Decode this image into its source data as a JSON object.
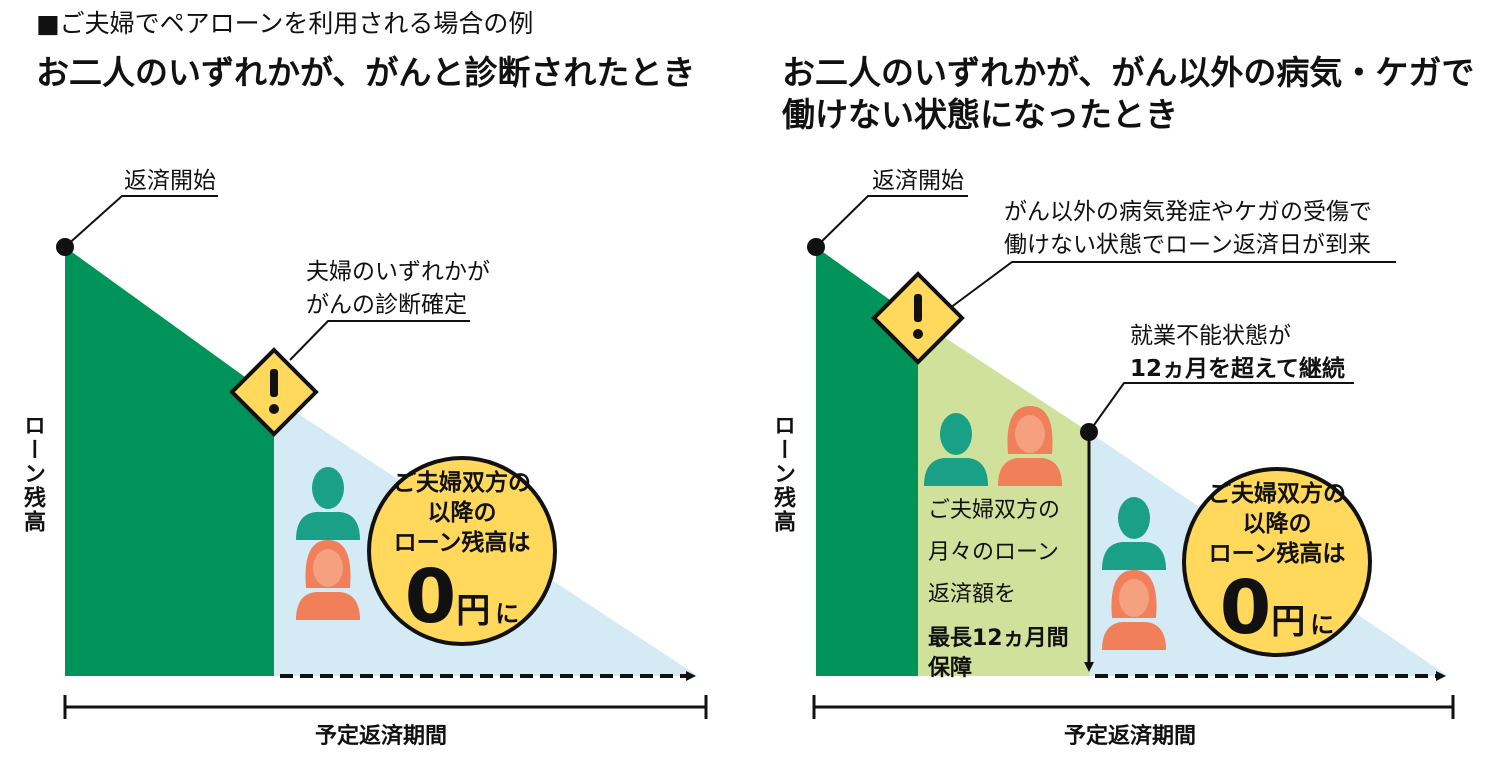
{
  "caption": "■ご夫婦でペアローンを利用される場合の例",
  "left": {
    "title": "お二人のいずれかが、がんと診断されたとき",
    "start_label": "返済開始",
    "event_line1": "夫婦のいずれかが",
    "event_line2": "がんの診断確定",
    "y_axis_label": "ローン残高",
    "x_axis_label": "予定返済期間",
    "circle_line1": "ご夫婦双方の",
    "circle_line2": "以降の",
    "circle_line3": "ローン残高は",
    "circle_zero": "0",
    "circle_yen": "円",
    "circle_ni": "に"
  },
  "right": {
    "title_line1": "お二人のいずれかが、がん以外の病気・ケガで",
    "title_line2": "働けない状態になったとき",
    "start_label": "返済開始",
    "event_line1": "がん以外の病気発症やケガの受傷で",
    "event_line2": "働けない状態でローン返済日が到来",
    "continue_line1": "就業不能状態が",
    "continue_line2": "12ヵ月を超えて継続",
    "guarantee_line1": "ご夫婦双方の",
    "guarantee_line2": "月々のローン",
    "guarantee_line3": "返済額を",
    "guarantee_line4": "最長12ヵ月間",
    "guarantee_line5": "保障",
    "y_axis_label": "ローン残高",
    "x_axis_label": "予定返済期間",
    "circle_line1": "ご夫婦双方の",
    "circle_line2": "以降の",
    "circle_line3": "ローン残高は",
    "circle_zero": "0",
    "circle_yen": "円",
    "circle_ni": "に"
  },
  "icons": {
    "warning": "warning-icon",
    "male": "male-person-icon",
    "female": "female-person-icon"
  },
  "colors": {
    "paid_green": "#00945a",
    "guarantee_lightgreen": "#cfe19a",
    "zero_lightblue": "#d4eaf4",
    "circle_yellow": "#ffd85c",
    "warning_yellow": "#ffd85c",
    "male_teal": "#1aa087",
    "female_orange": "#f07f5a"
  }
}
